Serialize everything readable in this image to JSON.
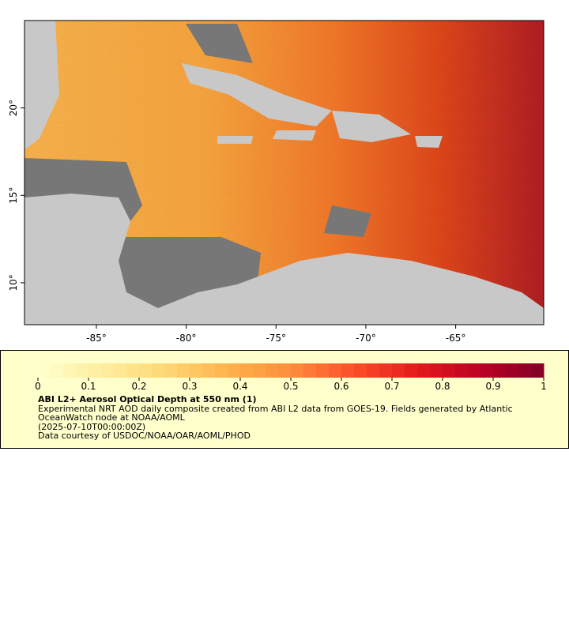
{
  "map": {
    "xlim": [
      -89.0,
      -60.1
    ],
    "ylim": [
      7.6,
      25.0
    ],
    "xticks": [
      {
        "value": -85,
        "label": "-85°"
      },
      {
        "value": -80,
        "label": "-80°"
      },
      {
        "value": -75,
        "label": "-75°"
      },
      {
        "value": -70,
        "label": "-70°"
      },
      {
        "value": -65,
        "label": "-65°"
      }
    ],
    "yticks": [
      {
        "value": 10,
        "label": "10°"
      },
      {
        "value": 15,
        "label": "15°"
      },
      {
        "value": 20,
        "label": "20°"
      }
    ]
  },
  "colorbar": {
    "lim": [
      0,
      1
    ],
    "ticks": [
      0,
      0.1,
      0.2,
      0.3,
      0.4,
      0.5,
      0.6,
      0.7,
      0.8,
      0.9,
      1
    ],
    "colors": [
      "#ffffcc",
      "#ffeda0",
      "#fed976",
      "#feb24c",
      "#fd8d3c",
      "#fc4e2a",
      "#e31a1c",
      "#bd0026",
      "#800026"
    ]
  },
  "legend": {
    "title": "ABI L2+ Aerosol Optical Depth at 550 nm (1)",
    "description": "Experimental NRT AOD daily composite created from ABI L2 data from GOES-19. Fields generated by Atlantic OceanWatch node at NOAA/AOML",
    "time": "(2025-07-10T00:00:00Z)",
    "credit": "Data courtesy of USDOC/NOAA/OAR/AOML/PHOD"
  }
}
